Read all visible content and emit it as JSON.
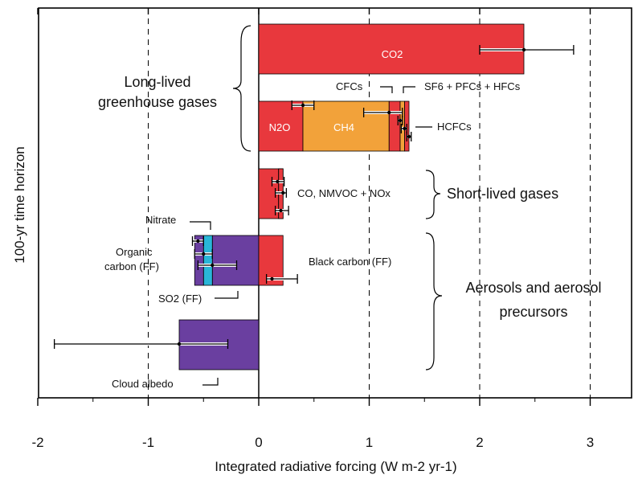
{
  "chart_data": {
    "type": "bar",
    "orientation": "horizontal",
    "title": "",
    "xlabel": "Integrated radiative forcing (W m-2 yr-1)",
    "ylabel": "100-yr time horizon",
    "xlim": [
      -2,
      3.4
    ],
    "xticks": [
      "-2",
      "-1",
      "0",
      "1",
      "2",
      "3"
    ],
    "grid": "dashed vertical lines at -1, 1, 2, 3",
    "colors": {
      "red": "#e8383d",
      "orange": "#f2a23a",
      "purple": "#6a3fa0",
      "cyan": "#2ab6d8",
      "axis": "#000000"
    },
    "rows": [
      {
        "name": "co2",
        "segments": [
          {
            "label": "CO2",
            "from": 0,
            "to": 2.4,
            "color": "red"
          }
        ],
        "error_bars": [
          {
            "at": 2.4,
            "low": 2.0,
            "high": 2.85
          }
        ]
      },
      {
        "name": "long-lived-other",
        "segments": [
          {
            "label": "N2O",
            "from": 0,
            "to": 0.4,
            "color": "red"
          },
          {
            "label": "CH4",
            "from": 0.4,
            "to": 1.18,
            "color": "orange"
          },
          {
            "label": "CFCs",
            "from": 1.18,
            "to": 1.28,
            "color": "red"
          },
          {
            "label": "SF6 + PFCs + HFCs",
            "from": 1.28,
            "to": 1.32,
            "color": "orange"
          },
          {
            "label": "HCFCs",
            "from": 1.32,
            "to": 1.36,
            "color": "red"
          }
        ],
        "error_bars": [
          {
            "at": 0.4,
            "low": 0.3,
            "high": 0.5
          },
          {
            "at": 1.18,
            "low": 0.95,
            "high": 1.3
          },
          {
            "at": 1.28,
            "low": 1.26,
            "high": 1.3
          },
          {
            "at": 1.32,
            "low": 1.29,
            "high": 1.34
          },
          {
            "at": 1.36,
            "low": 1.34,
            "high": 1.38
          }
        ]
      },
      {
        "name": "short-lived",
        "segments": [
          {
            "label": "CO",
            "from": 0,
            "to": 0.18,
            "color": "red"
          },
          {
            "label": "NMVOC",
            "from": 0.18,
            "to": 0.22,
            "color": "orange"
          },
          {
            "label": "NOx",
            "from": 0.18,
            "to": 0.22,
            "color": "red"
          }
        ],
        "error_bars": [
          {
            "at": 0.17,
            "low": 0.12,
            "high": 0.23
          },
          {
            "at": 0.22,
            "low": 0.15,
            "high": 0.25
          },
          {
            "at": 0.2,
            "low": 0.15,
            "high": 0.27
          }
        ]
      },
      {
        "name": "aerosols",
        "segments": [
          {
            "label": "SO2 (FF)",
            "from": -0.42,
            "to": 0,
            "color": "purple"
          },
          {
            "label": "Organic carbon (FF)",
            "from": -0.5,
            "to": -0.42,
            "color": "cyan"
          },
          {
            "label": "Nitrate",
            "from": -0.58,
            "to": -0.5,
            "color": "purple"
          },
          {
            "label": "Black carbon (FF)",
            "from": 0,
            "to": 0.22,
            "color": "red"
          }
        ],
        "error_bars": [
          {
            "at": -0.55,
            "low": -0.6,
            "high": -0.5
          },
          {
            "at": -0.5,
            "low": -0.58,
            "high": -0.42
          },
          {
            "at": -0.42,
            "low": -0.55,
            "high": -0.2
          },
          {
            "at": 0.12,
            "low": 0.07,
            "high": 0.35
          }
        ]
      },
      {
        "name": "cloud-albedo",
        "segments": [
          {
            "label": "Cloud albedo",
            "from": -0.72,
            "to": 0,
            "color": "purple"
          }
        ],
        "error_bars": [
          {
            "at": -0.72,
            "low": -1.85,
            "high": -0.28
          }
        ]
      }
    ],
    "annotations": {
      "co2": "CO2",
      "n2o": "N2O",
      "ch4": "CH4",
      "cfcs": "CFCs",
      "sf6": "SF6 + PFCs + HFCs",
      "hcfcs": "HCFCs",
      "short_gases_species": "CO, NMVOC + NOx",
      "nitrate": "Nitrate",
      "organic_line1": "Organic",
      "organic_line2": "carbon (FF)",
      "so2": "SO2 (FF)",
      "black_carbon": "Black carbon (FF)",
      "cloud_albedo": "Cloud albedo"
    },
    "groups": {
      "long_lived_line1": "Long-lived",
      "long_lived_line2": "greenhouse gases",
      "short_lived": "Short-lived gases",
      "aerosols_line1": "Aerosols and aerosol",
      "aerosols_line2": "precursors"
    }
  }
}
